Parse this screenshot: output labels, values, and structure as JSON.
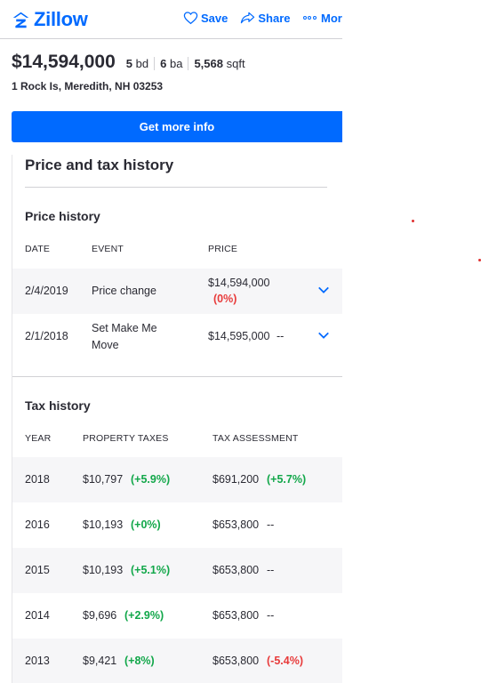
{
  "brand": {
    "name": "Zillow",
    "color": "#006aff"
  },
  "header_actions": [
    {
      "label": "Save",
      "icon": "heart-icon"
    },
    {
      "label": "Share",
      "icon": "share-icon"
    },
    {
      "label": "Mor",
      "icon": "more-dots-icon"
    }
  ],
  "listing": {
    "price": "$14,594,000",
    "beds_value": "5",
    "beds_unit": "bd",
    "baths_value": "6",
    "baths_unit": "ba",
    "sqft_value": "5,568",
    "sqft_unit": "sqft",
    "address": "1 Rock Is, Meredith, NH 03253"
  },
  "cta_label": "Get more info",
  "price_tax_title": "Price and tax history",
  "price_history": {
    "title": "Price history",
    "columns": [
      "DATE",
      "EVENT",
      "PRICE"
    ],
    "rows": [
      {
        "date": "2/4/2019",
        "event": "Price change",
        "price": "$14,594,000",
        "change": "(0%)"
      },
      {
        "date": "2/1/2018",
        "event_line1": "Set Make Me",
        "event_line2": "Move",
        "price": "$14,595,000",
        "change": "--"
      }
    ]
  },
  "tax_history": {
    "title": "Tax history",
    "columns": [
      "YEAR",
      "PROPERTY TAXES",
      "TAX ASSESSMENT"
    ],
    "rows": [
      {
        "year": "2018",
        "taxes": "$10,797",
        "tax_change": "(+5.9%)",
        "assessment": "$691,200",
        "assess_change": "(+5.7%)"
      },
      {
        "year": "2016",
        "taxes": "$10,193",
        "tax_change": "(+0%)",
        "assessment": "$653,800",
        "assess_change": "--"
      },
      {
        "year": "2015",
        "taxes": "$10,193",
        "tax_change": "(+5.1%)",
        "assessment": "$653,800",
        "assess_change": "--"
      },
      {
        "year": "2014",
        "taxes": "$9,696",
        "tax_change": "(+2.9%)",
        "assessment": "$653,800",
        "assess_change": "--"
      },
      {
        "year": "2013",
        "taxes": "$9,421",
        "tax_change": "(+8%)",
        "assessment": "$653,800",
        "assess_change": "(-5.4%)"
      }
    ]
  },
  "colors": {
    "increase": "#12a74a",
    "decrease": "#e83b3b",
    "text": "#2a2a33",
    "row_shade": "#f6f6f8"
  }
}
